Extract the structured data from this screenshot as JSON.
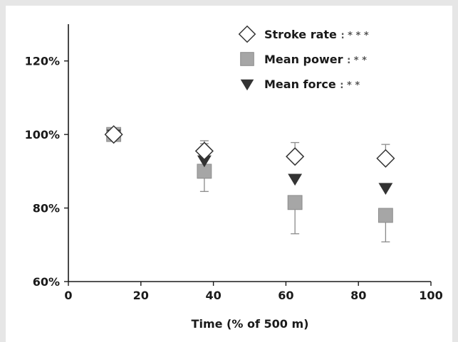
{
  "chart_data": {
    "type": "scatter",
    "xlabel": "Time (% of 500 m)",
    "ylabel": "",
    "xlim": [
      0,
      100
    ],
    "ylim": [
      60,
      130
    ],
    "x_ticks": [
      0,
      20,
      40,
      60,
      80,
      100
    ],
    "x_tick_labels": [
      "0",
      "20",
      "40",
      "60",
      "80",
      "100"
    ],
    "y_ticks": [
      60,
      80,
      100,
      120
    ],
    "y_tick_labels": [
      "60%",
      "80%",
      "100%",
      "120%"
    ],
    "grid": false,
    "legend_position": "top-right",
    "series": [
      {
        "name": "Stroke rate",
        "significance": ": * * *",
        "marker": "diamond-open",
        "color": "#333333",
        "x": [
          12.5,
          37.5,
          62.5,
          87.5
        ],
        "y": [
          100,
          95.5,
          94,
          93.5
        ],
        "err_upper": [
          0,
          2.8,
          3.8,
          3.8
        ]
      },
      {
        "name": "Mean power",
        "significance": ": * *",
        "marker": "square",
        "color": "#a6a6a6",
        "x": [
          12.5,
          37.5,
          62.5,
          87.5
        ],
        "y": [
          100,
          90,
          81.5,
          78
        ],
        "err_lower": [
          0,
          5.5,
          8.5,
          7.2
        ]
      },
      {
        "name": "Mean force",
        "significance": ": * *",
        "marker": "triangle-down",
        "color": "#333333",
        "x": [
          12.5,
          37.5,
          62.5,
          87.5
        ],
        "y": [
          100,
          93,
          88,
          85.5
        ],
        "err_upper": [
          0,
          4.5,
          0,
          0
        ]
      }
    ]
  }
}
